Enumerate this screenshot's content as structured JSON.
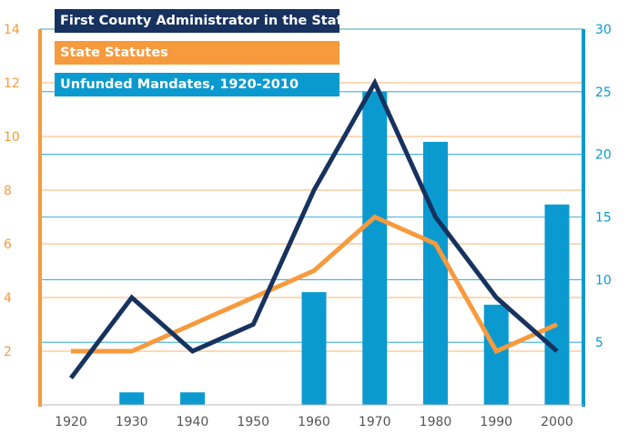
{
  "chart_data": {
    "type": "bar+line",
    "categories": [
      "1920",
      "1930",
      "1940",
      "1950",
      "1960",
      "1970",
      "1980",
      "1990",
      "2000"
    ],
    "series": [
      {
        "name": "First County Administrator in the State",
        "kind": "line",
        "axis": "left",
        "color": "#17325e",
        "values": [
          1,
          4,
          2,
          3,
          8,
          12,
          7,
          4,
          2
        ]
      },
      {
        "name": "State Statutes",
        "kind": "line",
        "axis": "left",
        "color": "#f79a3d",
        "values": [
          2,
          2,
          3,
          4,
          5,
          7,
          6,
          2,
          3
        ]
      },
      {
        "name": "Unfunded Mandates, 1920-2010",
        "kind": "bar",
        "axis": "right",
        "color": "#0b9ad0",
        "values": [
          0,
          1,
          1,
          0,
          9,
          25,
          21,
          8,
          16
        ]
      }
    ],
    "y_left": {
      "ticks": [
        "2",
        "4",
        "6",
        "8",
        "10",
        "12",
        "14"
      ],
      "lim": [
        0,
        14
      ],
      "color": "#f79a3d"
    },
    "y_right": {
      "ticks": [
        "5",
        "10",
        "15",
        "20",
        "25",
        "30"
      ],
      "lim": [
        0,
        30
      ],
      "color": "#0b9ad0"
    },
    "grid": true,
    "legend": "top-left"
  }
}
